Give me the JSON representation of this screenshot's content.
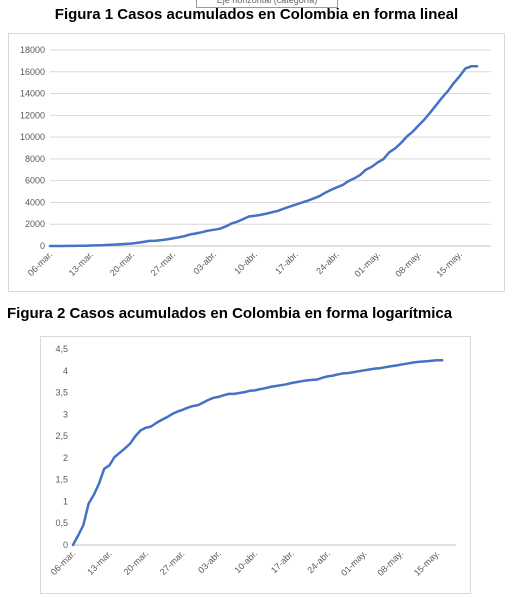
{
  "tooltip_text": "Eje horizontal (categoría)",
  "chart_data": [
    {
      "type": "line",
      "title": "Figura 1 Casos acumulados en Colombia en forma lineal",
      "categories": [
        "06-mar.",
        "13-mar.",
        "20-mar.",
        "27-mar.",
        "03-abr.",
        "10-abr.",
        "17-abr.",
        "24-abr.",
        "01-may.",
        "08-may.",
        "15-may."
      ],
      "x": [
        0,
        1,
        2,
        3,
        4,
        5,
        6,
        7,
        8,
        9,
        10,
        11,
        12,
        13,
        14,
        15,
        16,
        17,
        18,
        19,
        20,
        21,
        22,
        23,
        24,
        25,
        26,
        27,
        28,
        29,
        30,
        31,
        32,
        33,
        34,
        35,
        36,
        37,
        38,
        39,
        40,
        41,
        42,
        43,
        44,
        45,
        46,
        47,
        48,
        49,
        50,
        51,
        52,
        53,
        54,
        55,
        56,
        57,
        58,
        59,
        60,
        61,
        62,
        63,
        64,
        65,
        66,
        67,
        68,
        69,
        70,
        71,
        72,
        73
      ],
      "series": [
        {
          "values": [
            1,
            1,
            3,
            9,
            13,
            16,
            24,
            45,
            57,
            75,
            102,
            128,
            158,
            196,
            231,
            306,
            378,
            470,
            491,
            539,
            608,
            702,
            798,
            906,
            1065,
            1161,
            1267,
            1406,
            1485,
            1579,
            1780,
            2054,
            2223,
            2473,
            2709,
            2776,
            2852,
            2979,
            3105,
            3233,
            3439,
            3621,
            3792,
            3977,
            4149,
            4356,
            4561,
            4881,
            5142,
            5379,
            5597,
            5949,
            6207,
            6507,
            7006,
            7285,
            7668,
            7973,
            8613,
            8959,
            9456,
            10051,
            10495,
            11063,
            11613,
            12272,
            12930,
            13610,
            14216,
            14939,
            15574,
            16295,
            16500,
            16500
          ]
        }
      ],
      "y_ticks": [
        "0",
        "2000",
        "4000",
        "6000",
        "8000",
        "10000",
        "12000",
        "14000",
        "16000",
        "18000"
      ],
      "ylim": [
        0,
        18000
      ],
      "color": "#4472c4",
      "grid": true
    },
    {
      "type": "line",
      "title": "Figura 2 Casos acumulados en Colombia en forma logarítmica",
      "categories": [
        "06-mar.",
        "13-mar.",
        "20-mar.",
        "27-mar.",
        "03-abr.",
        "10-abr.",
        "17-abr.",
        "24-abr.",
        "01-may.",
        "08-may.",
        "15-may."
      ],
      "x": [
        0,
        1,
        2,
        3,
        4,
        5,
        6,
        7,
        8,
        9,
        10,
        11,
        12,
        13,
        14,
        15,
        16,
        17,
        18,
        19,
        20,
        21,
        22,
        23,
        24,
        25,
        26,
        27,
        28,
        29,
        30,
        31,
        32,
        33,
        34,
        35,
        36,
        37,
        38,
        39,
        40,
        41,
        42,
        43,
        44,
        45,
        46,
        47,
        48,
        49,
        50,
        51,
        52,
        53,
        54,
        55,
        56,
        57,
        58,
        59,
        60,
        61,
        62,
        63,
        64,
        65,
        66,
        67,
        68,
        69,
        70,
        71
      ],
      "series": [
        {
          "values": [
            0,
            0.22,
            0.46,
            0.95,
            1.15,
            1.41,
            1.75,
            1.83,
            2.02,
            2.12,
            2.22,
            2.33,
            2.5,
            2.63,
            2.69,
            2.72,
            2.8,
            2.87,
            2.93,
            3.0,
            3.06,
            3.1,
            3.15,
            3.19,
            3.21,
            3.27,
            3.33,
            3.38,
            3.4,
            3.44,
            3.47,
            3.47,
            3.49,
            3.51,
            3.54,
            3.55,
            3.58,
            3.6,
            3.63,
            3.65,
            3.67,
            3.69,
            3.72,
            3.74,
            3.76,
            3.78,
            3.79,
            3.8,
            3.84,
            3.87,
            3.89,
            3.92,
            3.94,
            3.95,
            3.97,
            3.99,
            4.01,
            4.03,
            4.05,
            4.06,
            4.08,
            4.1,
            4.12,
            4.14,
            4.16,
            4.18,
            4.2,
            4.21,
            4.22,
            4.23,
            4.24,
            4.24
          ]
        }
      ],
      "y_ticks": [
        "0",
        "0,5",
        "1",
        "1,5",
        "2",
        "2,5",
        "3",
        "3,5",
        "4",
        "4,5"
      ],
      "ylim": [
        0,
        4.5
      ],
      "color": "#4472c4",
      "grid": false
    }
  ]
}
